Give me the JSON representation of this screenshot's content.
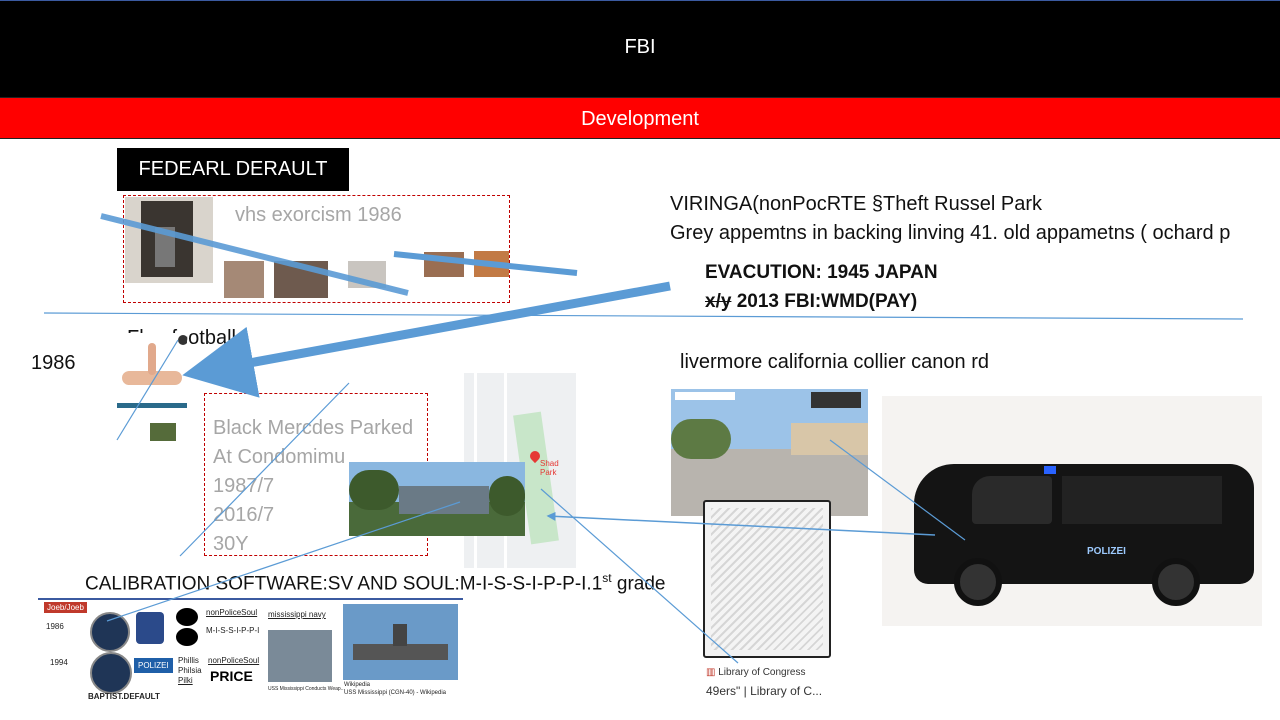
{
  "header": {
    "title": "FBI"
  },
  "subbar": {
    "title": "Development"
  },
  "federal_box": {
    "label": "FEDEARL DERAULT"
  },
  "vhs": {
    "caption": "vhs exorcism 1986"
  },
  "viringa": {
    "line1": "VIRINGA(nonPocRTE §Theft Russel Park",
    "line2": "Grey appemtns in backing linving 41. old appametns ( ochard p"
  },
  "evacution": {
    "line1": "EVACUTION: 1945 JAPAN",
    "strike": "x/y",
    "line2_rest": " 2013 FBI:WMD(PAY)"
  },
  "flag_football": "Flag football",
  "year_1986": "1986",
  "livermore": "livermore california collier canon rd",
  "mercedes": {
    "lines": [
      "Black Mercdes Parked",
      "At Condomimu",
      "1987/7",
      "2016/7",
      "30Y"
    ]
  },
  "map": {
    "pin_label": "Shad Park"
  },
  "calibration": {
    "text": "CALIBRATION SOFTWARE:SV AND SOUL:M-I-S-S-I-P-P-I.1",
    "sup": "st",
    "tail": " grade"
  },
  "collage": {
    "tag": "Joeb/Joeb",
    "year1": "1986",
    "year2": "1994",
    "polizei": "POLIZEI",
    "names": [
      "Phillis",
      "Philsia",
      "Pilki"
    ],
    "nonpolice1": "nonPoliceSoul",
    "mississippi_spaced": "M-I-S-S-I-P-P-I",
    "nonpolice2": "nonPoliceSoul",
    "price": "PRICE",
    "baptist": "BAPTIST.DEFAULT",
    "navy_label": "mississippi navy",
    "sub_caption": "USS Mississippi Conducts Weap...",
    "wiki_label": "Wikipedia",
    "wiki_caption": "USS Mississippi (CGN-40) - Wikipedia"
  },
  "loc": {
    "source": "Library of Congress",
    "caption": "49ers\" | Library of C..."
  },
  "van": {
    "label": "POLIZEI"
  },
  "colors": {
    "header": "#000000",
    "subbar": "#ff0000",
    "arrow": "#5b9bd5",
    "dashed": "#c00000"
  }
}
